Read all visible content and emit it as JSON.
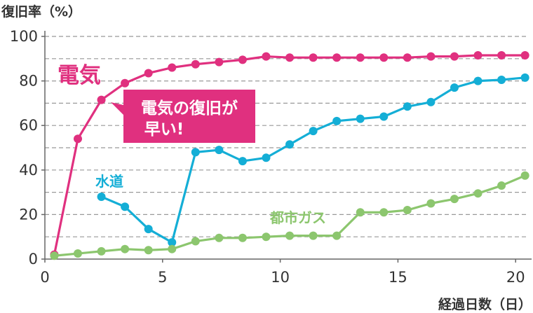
{
  "chart_data": {
    "type": "line",
    "ylabel": "復旧率（%）",
    "xlabel": "経過日数（日）",
    "xlim": [
      0,
      20.5
    ],
    "ylim": [
      0,
      100
    ],
    "x_ticks": [
      0,
      5,
      10,
      15,
      20
    ],
    "y_ticks": [
      0,
      20,
      40,
      60,
      80,
      100
    ],
    "grid": "horizontal-dashed",
    "series": [
      {
        "name": "電気",
        "color": "#e0307f",
        "x": [
          0.4,
          1.4,
          2.4,
          3.4,
          4.4,
          5.4,
          6.4,
          7.4,
          8.4,
          9.4,
          10.4,
          11.4,
          12.4,
          13.4,
          14.4,
          15.4,
          16.4,
          17.4,
          18.4,
          19.4,
          20.4
        ],
        "values": [
          2,
          54,
          71.5,
          79,
          83.5,
          86,
          87.5,
          88.5,
          89.5,
          91,
          90.5,
          90.5,
          90.5,
          90.5,
          90.5,
          90.5,
          91,
          91,
          91.5,
          91.5,
          91.5
        ]
      },
      {
        "name": "水道",
        "color": "#14aed6",
        "x": [
          2.4,
          3.4,
          4.4,
          5.4,
          6.4,
          7.4,
          8.4,
          9.4,
          10.4,
          11.4,
          12.4,
          13.4,
          14.4,
          15.4,
          16.4,
          17.4,
          18.4,
          19.4,
          20.4
        ],
        "values": [
          28,
          23.5,
          13.5,
          7.5,
          48,
          49,
          44,
          45.5,
          51.5,
          57.5,
          62,
          63,
          64,
          68.5,
          70.5,
          77,
          80,
          80.5,
          81.5
        ]
      },
      {
        "name": "都市ガス",
        "color": "#8cc66e",
        "x": [
          0.4,
          1.4,
          2.4,
          3.4,
          4.4,
          5.4,
          6.4,
          7.4,
          8.4,
          9.4,
          10.4,
          11.4,
          12.4,
          13.4,
          14.4,
          15.4,
          16.4,
          17.4,
          18.4,
          19.4,
          20.4
        ],
        "values": [
          1.5,
          2.5,
          3.5,
          4.5,
          4,
          4.5,
          8,
          9.5,
          9.5,
          10,
          10.5,
          10.5,
          10.5,
          21,
          21,
          22,
          25,
          27,
          29.5,
          33,
          37.5
        ]
      }
    ],
    "annotations": {
      "callout_text": "電気の復旧が早い!",
      "callout_line1": "電気の復旧が",
      "callout_line2": "早い!",
      "callout_color": "#e0307f"
    }
  }
}
